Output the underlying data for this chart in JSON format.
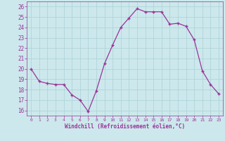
{
  "x": [
    0,
    1,
    2,
    3,
    4,
    5,
    6,
    7,
    8,
    9,
    10,
    11,
    12,
    13,
    14,
    15,
    16,
    17,
    18,
    19,
    20,
    21,
    22,
    23
  ],
  "y": [
    20.0,
    18.8,
    18.6,
    18.5,
    18.5,
    17.5,
    17.0,
    15.9,
    17.9,
    20.5,
    22.3,
    24.0,
    24.9,
    25.8,
    25.5,
    25.5,
    25.5,
    24.3,
    24.4,
    24.1,
    22.8,
    19.8,
    18.5,
    17.6
  ],
  "line_color": "#993399",
  "marker": "+",
  "marker_color": "#993399",
  "bg_color": "#cce8ec",
  "grid_color": "#b0d4d8",
  "xlabel": "Windchill (Refroidissement éolien,°C)",
  "xlabel_color": "#993399",
  "tick_color": "#993399",
  "label_color": "#993399",
  "ylim": [
    15.5,
    26.5
  ],
  "xlim": [
    -0.5,
    23.5
  ],
  "yticks": [
    16,
    17,
    18,
    19,
    20,
    21,
    22,
    23,
    24,
    25,
    26
  ],
  "xticks": [
    0,
    1,
    2,
    3,
    4,
    5,
    6,
    7,
    8,
    9,
    10,
    11,
    12,
    13,
    14,
    15,
    16,
    17,
    18,
    19,
    20,
    21,
    22,
    23
  ]
}
